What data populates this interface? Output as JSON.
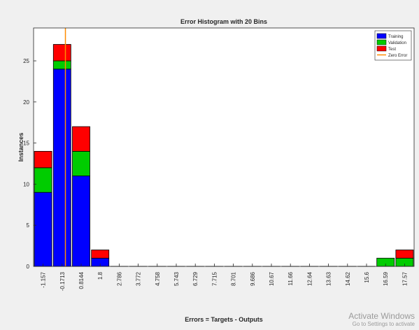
{
  "chart_data": {
    "type": "bar",
    "stacked": true,
    "title": "Error Histogram with 20 Bins",
    "xlabel": "Errors = Targets - Outputs",
    "ylabel": "Instances",
    "ylim": [
      0,
      29
    ],
    "yticks": [
      0,
      5,
      10,
      15,
      20,
      25
    ],
    "grid": false,
    "legend_position": "top-right",
    "categories": [
      "-1.157",
      "-0.1713",
      "0.8144",
      "1.8",
      "2.786",
      "3.772",
      "4.758",
      "5.743",
      "6.729",
      "7.715",
      "8.701",
      "9.686",
      "10.67",
      "11.66",
      "12.64",
      "13.63",
      "14.62",
      "15.6",
      "16.59",
      "17.57"
    ],
    "series": [
      {
        "name": "Training",
        "color": "#0000ff",
        "values": [
          9,
          24,
          11,
          1,
          0,
          0,
          0,
          0,
          0,
          0,
          0,
          0,
          0,
          0,
          0,
          0,
          0,
          0,
          0,
          0
        ]
      },
      {
        "name": "Validation",
        "color": "#00cc00",
        "values": [
          3,
          1,
          3,
          0,
          0,
          0,
          0,
          0,
          0,
          0,
          0,
          0,
          0,
          0,
          0,
          0,
          0,
          0,
          1,
          1
        ]
      },
      {
        "name": "Test",
        "color": "#ff0000",
        "values": [
          2,
          2,
          3,
          1,
          0,
          0,
          0,
          0,
          0,
          0,
          0,
          0,
          0,
          0,
          0,
          0,
          0,
          0,
          0,
          1
        ]
      }
    ],
    "zero_error": {
      "name": "Zero Error",
      "color": "#ff8c00",
      "x": 0
    }
  },
  "watermark": {
    "line1": "Activate Windows",
    "line2": "Go to Settings to activate"
  }
}
